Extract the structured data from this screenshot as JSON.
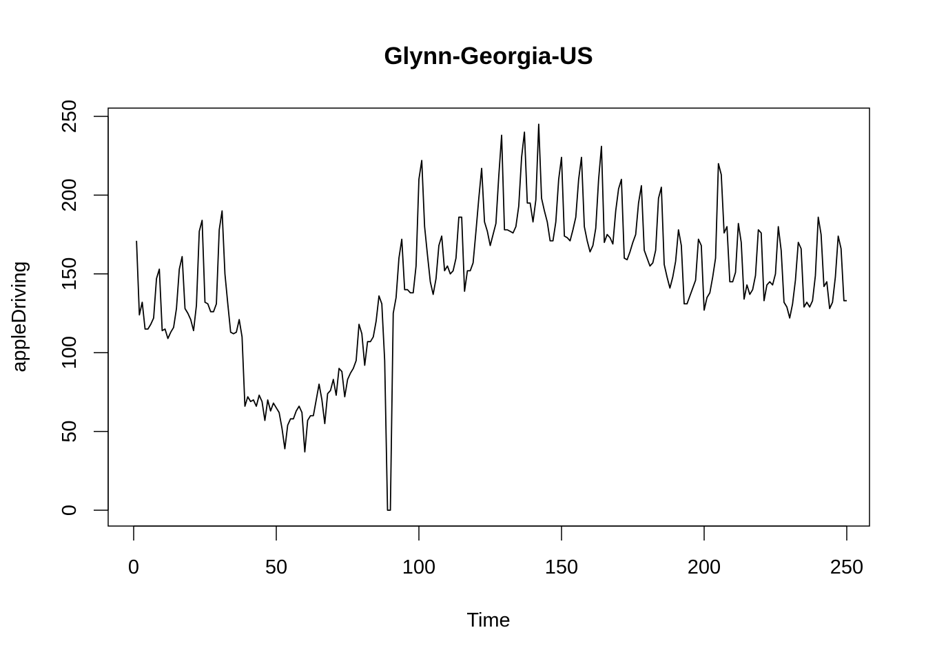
{
  "chart_data": {
    "type": "line",
    "title": "Glynn-Georgia-US",
    "xlabel": "Time",
    "ylabel": "appleDriving",
    "xlim": [
      0,
      250
    ],
    "ylim": [
      0,
      250
    ],
    "x_ticks": [
      0,
      50,
      100,
      150,
      200,
      250
    ],
    "y_ticks": [
      0,
      50,
      100,
      150,
      200,
      250
    ],
    "grid": false,
    "legend": "none",
    "line_color": "#000000",
    "x_start": 1,
    "series": [
      {
        "values": [
          171,
          124,
          132,
          115,
          115,
          118,
          122,
          147,
          153,
          114,
          115,
          109,
          113,
          116,
          128,
          153,
          161,
          128,
          125,
          121,
          114,
          130,
          177,
          184,
          132,
          131,
          126,
          126,
          131,
          178,
          190,
          150,
          131,
          113,
          112,
          113,
          121,
          110,
          66,
          72,
          69,
          70,
          66,
          73,
          69,
          57,
          70,
          63,
          68,
          65,
          62,
          52,
          39,
          54,
          58,
          58,
          63,
          66,
          62,
          37,
          57,
          60,
          60,
          70,
          80,
          70,
          55,
          74,
          76,
          83,
          73,
          90,
          88,
          72,
          83,
          87,
          90,
          95,
          118,
          112,
          92,
          107,
          107,
          110,
          120,
          136,
          131,
          95,
          0,
          0,
          125,
          135,
          160,
          172,
          140,
          140,
          138,
          138,
          155,
          210,
          222,
          180,
          162,
          145,
          137,
          147,
          168,
          174,
          152,
          155,
          150,
          152,
          160,
          186,
          186,
          139,
          152,
          152,
          157,
          177,
          198,
          217,
          183,
          177,
          168,
          175,
          182,
          212,
          238,
          178,
          178,
          177,
          176,
          180,
          193,
          224,
          240,
          195,
          195,
          183,
          197,
          245,
          198,
          190,
          183,
          171,
          171,
          183,
          210,
          224,
          174,
          173,
          171,
          178,
          186,
          210,
          224,
          180,
          171,
          164,
          168,
          179,
          210,
          231,
          170,
          175,
          173,
          169,
          190,
          204,
          210,
          160,
          159,
          164,
          170,
          175,
          195,
          206,
          165,
          160,
          155,
          157,
          165,
          198,
          205,
          156,
          148,
          141,
          148,
          158,
          178,
          168,
          131,
          131,
          136,
          141,
          146,
          172,
          168,
          127,
          135,
          138,
          148,
          160,
          220,
          213,
          176,
          180,
          145,
          145,
          151,
          182,
          170,
          134,
          143,
          137,
          140,
          149,
          178,
          176,
          133,
          143,
          145,
          143,
          150,
          180,
          165,
          132,
          129,
          122,
          131,
          146,
          170,
          166,
          129,
          132,
          129,
          133,
          149,
          186,
          175,
          142,
          145,
          128,
          132,
          148,
          174,
          166,
          133,
          133
        ]
      }
    ]
  }
}
